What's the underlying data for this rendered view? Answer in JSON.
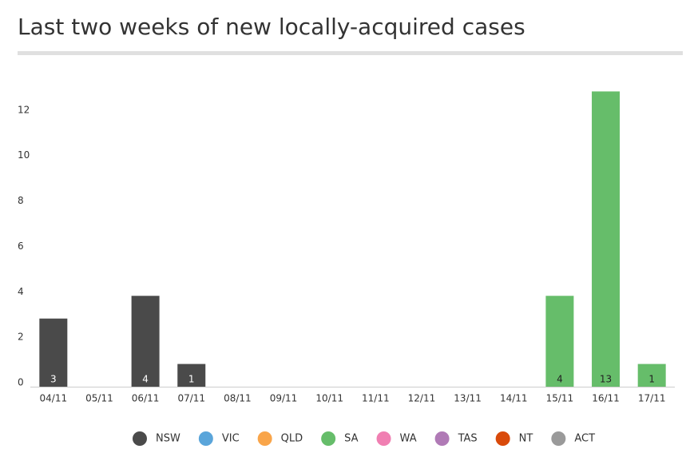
{
  "chart_data": {
    "type": "bar",
    "stacked": true,
    "title": "Last two weeks of new locally-acquired cases",
    "categories": [
      "04/11",
      "05/11",
      "06/11",
      "07/11",
      "08/11",
      "09/11",
      "10/11",
      "11/11",
      "12/11",
      "13/11",
      "14/11",
      "15/11",
      "16/11",
      "17/11"
    ],
    "series": [
      {
        "name": "NSW",
        "color": "#4a4a4a",
        "values": [
          3,
          0,
          4,
          1,
          0,
          0,
          0,
          0,
          0,
          0,
          0,
          0,
          0,
          0
        ]
      },
      {
        "name": "VIC",
        "color": "#5aa5da",
        "values": [
          0,
          0,
          0,
          0,
          0,
          0,
          0,
          0,
          0,
          0,
          0,
          0,
          0,
          0
        ]
      },
      {
        "name": "QLD",
        "color": "#f9a54a",
        "values": [
          0,
          0,
          0,
          0,
          0,
          0,
          0,
          0,
          0,
          0,
          0,
          0,
          0,
          0
        ]
      },
      {
        "name": "SA",
        "color": "#66bd6a",
        "values": [
          0,
          0,
          0,
          0,
          0,
          0,
          0,
          0,
          0,
          0,
          0,
          4,
          13,
          1
        ]
      },
      {
        "name": "WA",
        "color": "#f07fb2",
        "values": [
          0,
          0,
          0,
          0,
          0,
          0,
          0,
          0,
          0,
          0,
          0,
          0,
          0,
          0
        ]
      },
      {
        "name": "TAS",
        "color": "#b07ab6",
        "values": [
          0,
          0,
          0,
          0,
          0,
          0,
          0,
          0,
          0,
          0,
          0,
          0,
          0,
          0
        ]
      },
      {
        "name": "NT",
        "color": "#d94a0a",
        "values": [
          0,
          0,
          0,
          0,
          0,
          0,
          0,
          0,
          0,
          0,
          0,
          0,
          0,
          0
        ]
      },
      {
        "name": "ACT",
        "color": "#9a9a9a",
        "values": [
          0,
          0,
          0,
          0,
          0,
          0,
          0,
          0,
          0,
          0,
          0,
          0,
          0,
          0
        ]
      }
    ],
    "ylim": [
      0,
      14
    ],
    "yticks": [
      0,
      2,
      4,
      6,
      8,
      10,
      12
    ],
    "grid": false,
    "legend": "bottom"
  }
}
